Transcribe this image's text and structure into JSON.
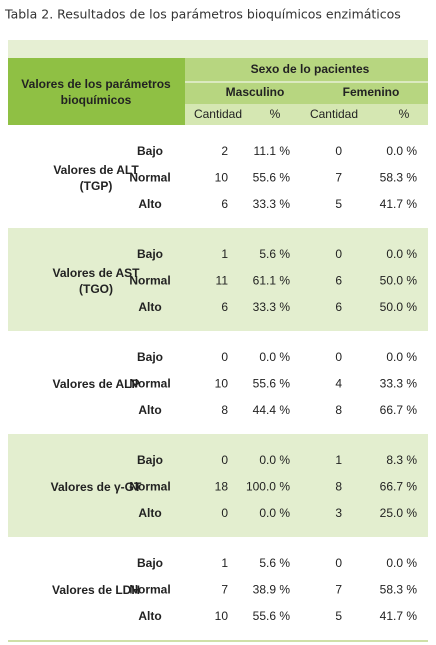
{
  "title": "Tabla 2. Resultados de los parámetros bioquímicos enzimáticos",
  "header": {
    "group_col": [
      "Valores de los parámetros",
      "bioquímicos"
    ],
    "sexo": "Sexo de lo pacientes",
    "masculino": "Masculino",
    "femenino": "Femenino",
    "columns": [
      "Cantidad",
      "%",
      "Cantidad",
      "%"
    ]
  },
  "groups": [
    {
      "label": [
        "Valores de ALT",
        "(TGP)"
      ],
      "rows": [
        {
          "level": "Bajo",
          "cells": [
            2,
            "11.1 %",
            0,
            "0.0 %"
          ]
        },
        {
          "level": "Normal",
          "cells": [
            10,
            "55.6 %",
            7,
            "58.3 %"
          ]
        },
        {
          "level": "Alto",
          "cells": [
            6,
            "33.3 %",
            5,
            "41.7 %"
          ]
        }
      ]
    },
    {
      "label": [
        "Valores de AST",
        "(TGO)"
      ],
      "rows": [
        {
          "level": "Bajo",
          "cells": [
            1,
            "5.6 %",
            0,
            "0.0 %"
          ]
        },
        {
          "level": "Normal",
          "cells": [
            11,
            "61.1 %",
            6,
            "50.0 %"
          ]
        },
        {
          "level": "Alto",
          "cells": [
            6,
            "33.3 %",
            6,
            "50.0 %"
          ]
        }
      ]
    },
    {
      "label": [
        "Valores de ALP"
      ],
      "rows": [
        {
          "level": "Bajo",
          "cells": [
            0,
            "0.0 %",
            0,
            "0.0 %"
          ]
        },
        {
          "level": "Normal",
          "cells": [
            10,
            "55.6 %",
            4,
            "33.3 %"
          ]
        },
        {
          "level": "Alto",
          "cells": [
            8,
            "44.4 %",
            8,
            "66.7 %"
          ]
        }
      ]
    },
    {
      "label": [
        "Valores de γ-GT"
      ],
      "rows": [
        {
          "level": "Bajo",
          "cells": [
            0,
            "0.0 %",
            1,
            "8.3 %"
          ]
        },
        {
          "level": "Normal",
          "cells": [
            18,
            "100.0 %",
            8,
            "66.7 %"
          ]
        },
        {
          "level": "Alto",
          "cells": [
            0,
            "0.0 %",
            3,
            "25.0 %"
          ]
        }
      ]
    },
    {
      "label": [
        "Valores de LDH"
      ],
      "rows": [
        {
          "level": "Bajo",
          "cells": [
            1,
            "5.6 %",
            0,
            "0.0 %"
          ]
        },
        {
          "level": "Normal",
          "cells": [
            7,
            "38.9 %",
            7,
            "58.3 %"
          ]
        },
        {
          "level": "Alto",
          "cells": [
            10,
            "55.6 %",
            5,
            "41.7 %"
          ]
        }
      ]
    }
  ]
}
